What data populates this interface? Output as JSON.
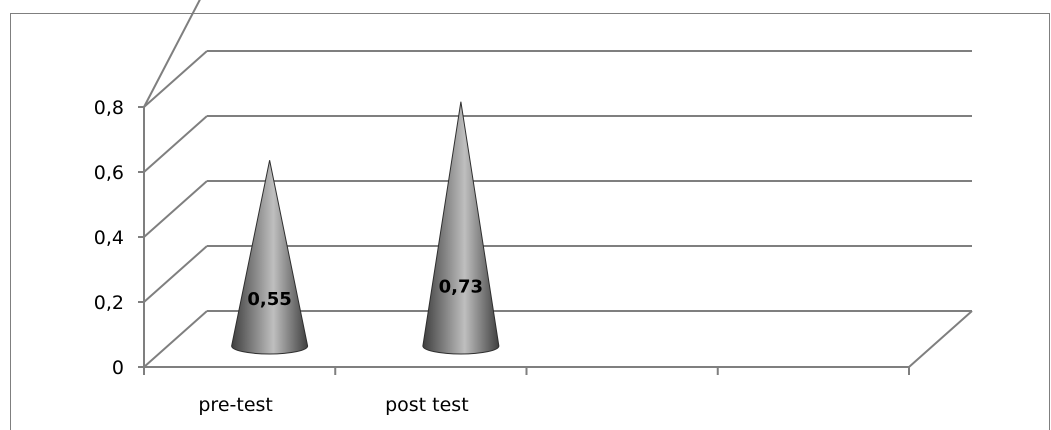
{
  "chart_data": {
    "type": "bar",
    "bar_shape": "cone",
    "three_d": true,
    "categories": [
      "pre-test",
      "post test"
    ],
    "values": [
      0.55,
      0.73
    ],
    "data_labels": [
      "0,55",
      "0,73"
    ],
    "y_ticks": [
      "0",
      "0,2",
      "0,4",
      "0,6",
      "0,8"
    ],
    "ylim": [
      0,
      0.8
    ],
    "category_slots": 4,
    "grid": true,
    "legend": "none",
    "colors": {
      "cone_dark": "#3f3f3f",
      "cone_light": "#bfbfbf",
      "grid": "#7f7f7f",
      "axis": "#7f7f7f"
    }
  }
}
